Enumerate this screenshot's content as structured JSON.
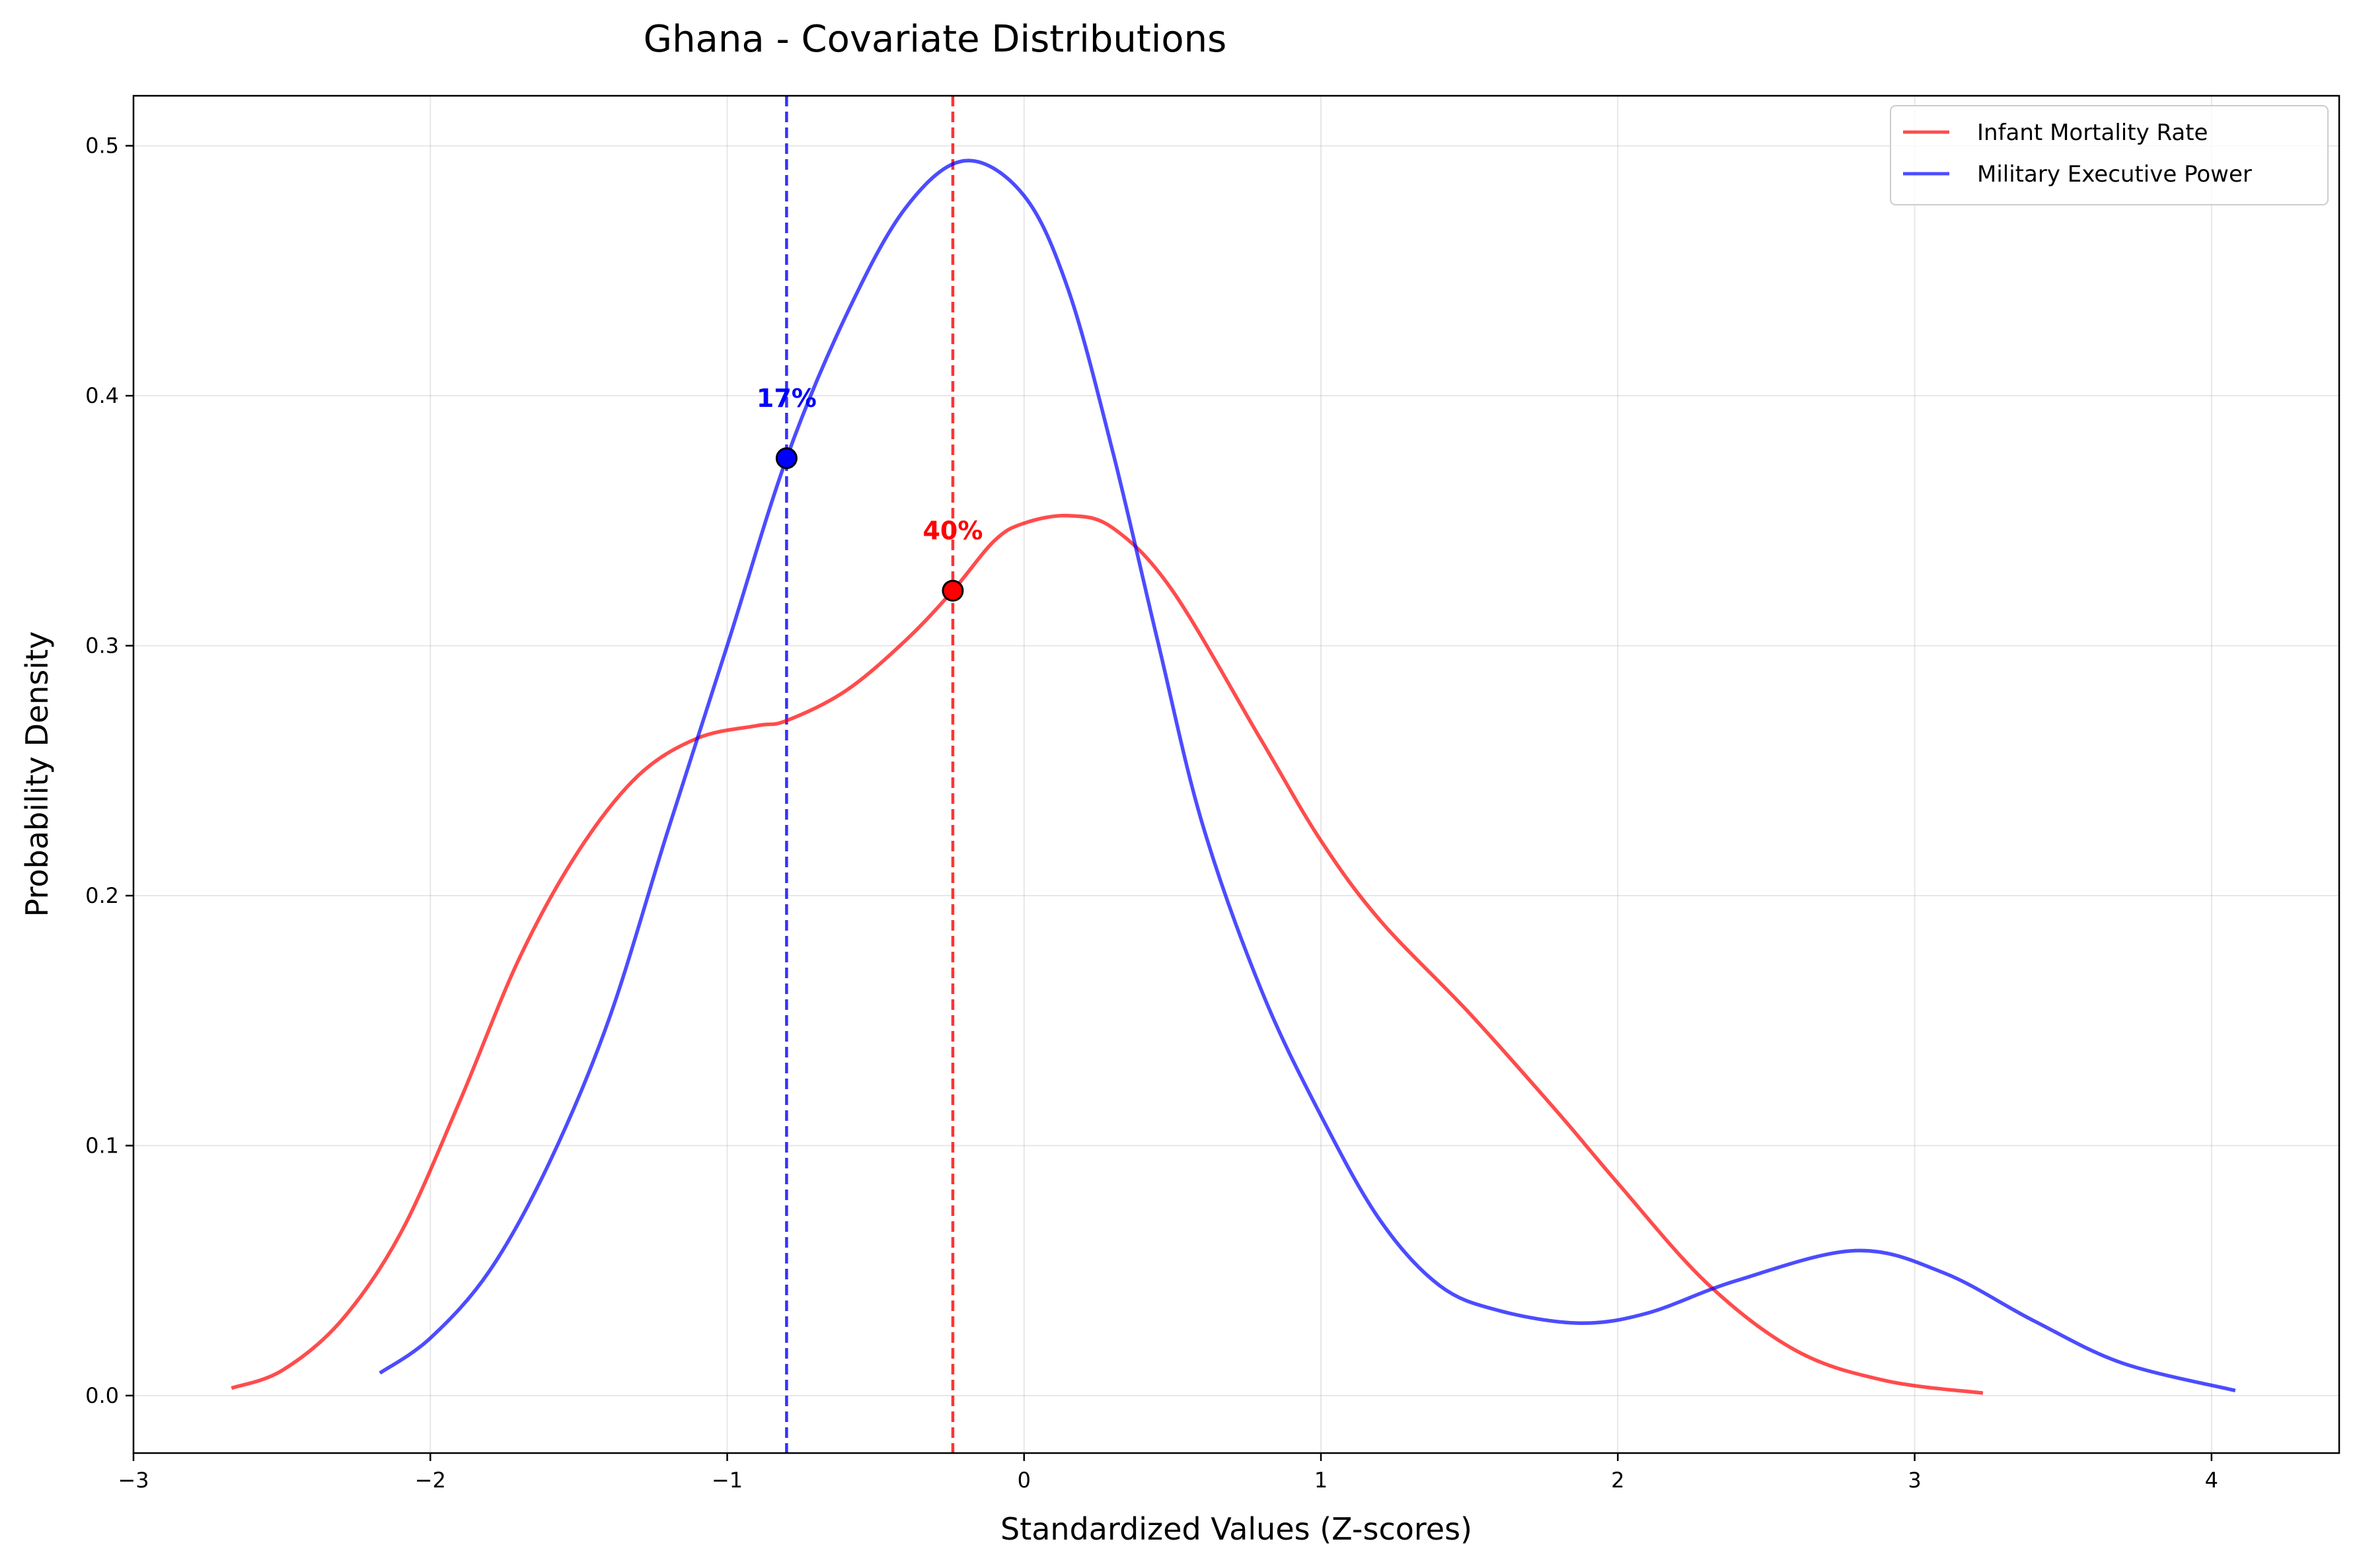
{
  "chart_data": {
    "type": "line",
    "title": "Ghana - Covariate Distributions",
    "xlabel": "Standardized Values (Z-scores)",
    "ylabel": "Probability Density",
    "xlim": [
      -3,
      4.43
    ],
    "ylim": [
      -0.023,
      0.52
    ],
    "xticks": [
      -3,
      -2,
      -1,
      0,
      1,
      2,
      3,
      4
    ],
    "xtick_labels": [
      "−3",
      "−2",
      "−1",
      "0",
      "1",
      "2",
      "3",
      "4"
    ],
    "yticks": [
      0.0,
      0.1,
      0.2,
      0.3,
      0.4,
      0.5
    ],
    "ytick_labels": [
      "0.0",
      "0.1",
      "0.2",
      "0.3",
      "0.4",
      "0.5"
    ],
    "grid": true,
    "legend_position": "top-right",
    "series": [
      {
        "name": "Infant Mortality Rate",
        "color": "#ff0000",
        "x": [
          -2.67,
          -2.5,
          -2.3,
          -2.1,
          -1.9,
          -1.7,
          -1.5,
          -1.3,
          -1.1,
          -0.9,
          -0.8,
          -0.6,
          -0.4,
          -0.24,
          -0.1,
          0.0,
          0.15,
          0.3,
          0.5,
          0.8,
          1.0,
          1.2,
          1.5,
          1.8,
          2.0,
          2.3,
          2.6,
          2.9,
          3.23
        ],
        "y": [
          0.003,
          0.01,
          0.03,
          0.065,
          0.118,
          0.175,
          0.218,
          0.248,
          0.263,
          0.268,
          0.27,
          0.282,
          0.302,
          0.322,
          0.342,
          0.349,
          0.352,
          0.347,
          0.322,
          0.262,
          0.222,
          0.19,
          0.153,
          0.113,
          0.085,
          0.045,
          0.018,
          0.006,
          0.001
        ]
      },
      {
        "name": "Military Executive Power",
        "color": "#0000ff",
        "x": [
          -2.17,
          -2.0,
          -1.8,
          -1.6,
          -1.4,
          -1.2,
          -1.0,
          -0.8,
          -0.6,
          -0.4,
          -0.2,
          0.0,
          0.15,
          0.3,
          0.45,
          0.6,
          0.8,
          1.0,
          1.2,
          1.4,
          1.6,
          1.87,
          2.1,
          2.4,
          2.8,
          3.1,
          3.4,
          3.7,
          4.08
        ],
        "y": [
          0.009,
          0.023,
          0.05,
          0.093,
          0.15,
          0.226,
          0.3,
          0.375,
          0.432,
          0.475,
          0.494,
          0.48,
          0.442,
          0.377,
          0.302,
          0.229,
          0.162,
          0.112,
          0.07,
          0.044,
          0.034,
          0.029,
          0.033,
          0.046,
          0.058,
          0.049,
          0.03,
          0.013,
          0.002
        ]
      }
    ],
    "markers": [
      {
        "series": "Infant Mortality Rate",
        "x": -0.24,
        "y": 0.322,
        "label": "40%",
        "color": "#ff0000"
      },
      {
        "series": "Military Executive Power",
        "x": -0.8,
        "y": 0.375,
        "label": "17%",
        "color": "#0000ff"
      }
    ]
  }
}
